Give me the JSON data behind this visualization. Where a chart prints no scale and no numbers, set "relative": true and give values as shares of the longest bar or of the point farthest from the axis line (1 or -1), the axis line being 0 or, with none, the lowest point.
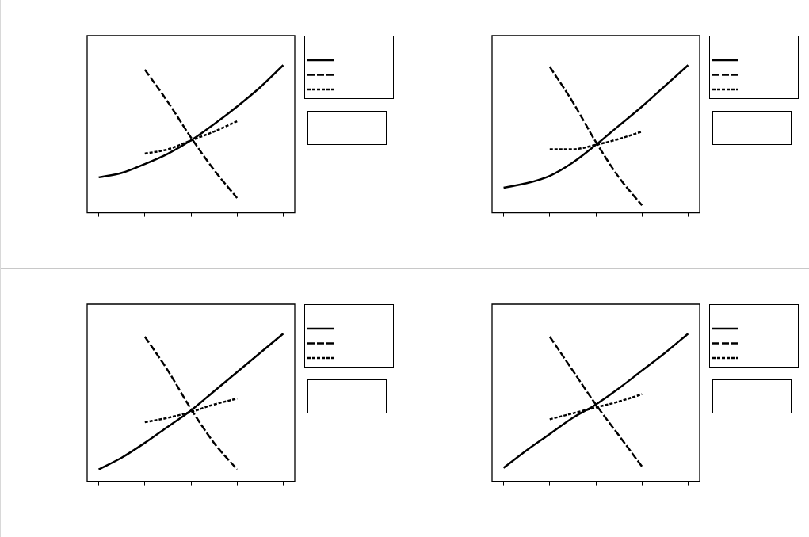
{
  "chart_data": [
    {
      "type": "line",
      "relative": true,
      "marker": "none",
      "grid": false,
      "categories": [
        null,
        null,
        null,
        null,
        null,
        null,
        null,
        null,
        null
      ],
      "series": [
        {
          "color": "#000000",
          "line_style": "solid",
          "values": [
            0.24,
            0.27,
            0.33,
            0.4,
            0.49,
            0.6,
            0.72,
            0.85,
            1
          ]
        },
        {
          "color": "#000000",
          "line_style": "dashed",
          "values": [
            null,
            null,
            0.97,
            0.75,
            0.51,
            0.29,
            0.1,
            null,
            null
          ]
        },
        {
          "color": "#000000",
          "line_style": "dotted",
          "values": [
            null,
            null,
            0.4,
            0.43,
            0.49,
            0.55,
            0.62,
            null,
            null
          ]
        }
      ]
    },
    {
      "type": "line",
      "relative": true,
      "marker": "none",
      "grid": false,
      "categories": [
        null,
        null,
        null,
        null,
        null,
        null,
        null,
        null,
        null
      ],
      "series": [
        {
          "color": "#000000",
          "line_style": "solid",
          "values": [
            0.17,
            0.2,
            0.25,
            0.34,
            0.46,
            0.59,
            0.72,
            0.86,
            1
          ]
        },
        {
          "color": "#000000",
          "line_style": "dashed",
          "values": [
            null,
            null,
            0.99,
            0.75,
            0.48,
            0.24,
            0.05,
            null,
            null
          ]
        },
        {
          "color": "#000000",
          "line_style": "dotted",
          "values": [
            null,
            null,
            0.43,
            0.43,
            0.46,
            0.5,
            0.55,
            null,
            null
          ]
        }
      ]
    },
    {
      "type": "line",
      "relative": true,
      "marker": "none",
      "grid": false,
      "categories": [
        null,
        null,
        null,
        null,
        null,
        null,
        null,
        null,
        null
      ],
      "series": [
        {
          "color": "#000000",
          "line_style": "solid",
          "values": [
            0.08,
            0.16,
            0.26,
            0.37,
            0.48,
            0.61,
            0.74,
            0.87,
            1
          ]
        },
        {
          "color": "#000000",
          "line_style": "dashed",
          "values": [
            null,
            null,
            0.98,
            0.75,
            0.49,
            0.26,
            0.08,
            null,
            null
          ]
        },
        {
          "color": "#000000",
          "line_style": "dotted",
          "values": [
            null,
            null,
            0.4,
            0.43,
            0.47,
            0.52,
            0.56,
            null,
            null
          ]
        }
      ]
    },
    {
      "type": "line",
      "relative": true,
      "marker": "none",
      "grid": false,
      "categories": [
        null,
        null,
        null,
        null,
        null,
        null,
        null,
        null,
        null
      ],
      "series": [
        {
          "color": "#000000",
          "line_style": "solid",
          "values": [
            0.09,
            0.21,
            0.32,
            0.43,
            0.52,
            0.63,
            0.75,
            0.87,
            1
          ]
        },
        {
          "color": "#000000",
          "line_style": "dashed",
          "values": [
            null,
            null,
            0.98,
            0.75,
            0.52,
            0.31,
            0.1,
            null,
            null
          ]
        },
        {
          "color": "#000000",
          "line_style": "dotted",
          "values": [
            null,
            null,
            0.42,
            0.46,
            0.5,
            0.54,
            0.59,
            null,
            null
          ]
        }
      ]
    }
  ]
}
